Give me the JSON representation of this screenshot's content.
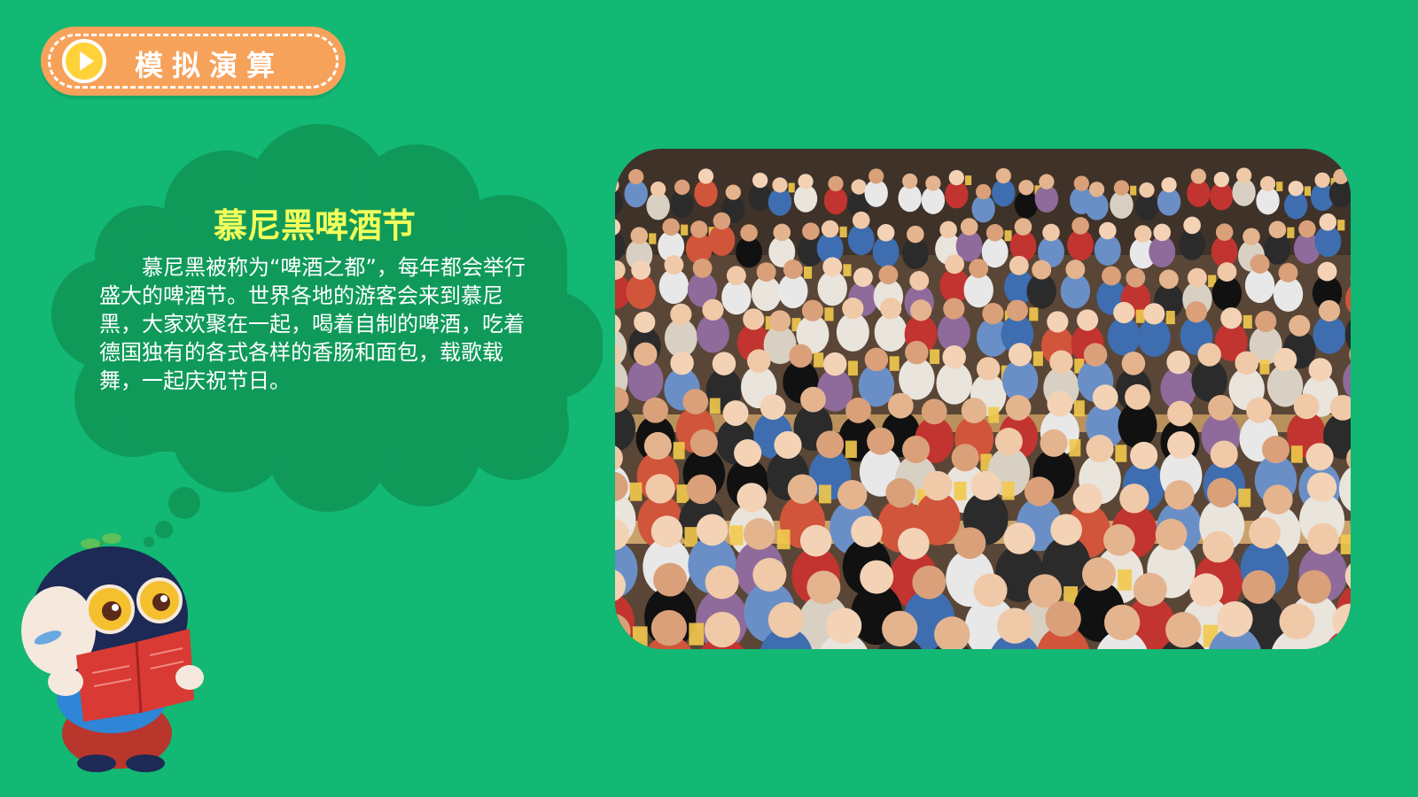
{
  "header": {
    "badge_label": "模拟演算",
    "badge_icon": "play-icon",
    "accent_color": "#f7a25a"
  },
  "cloud": {
    "title": "慕尼黑啤酒节",
    "body": "慕尼黑被称为“啤酒之都”，每年都会举行盛大的啤酒节。世界各地的游客会来到慕尼黑，大家欢聚在一起，喝着自制的啤酒，吃着德国独有的各式各样的香肠和面包，载歌载舞，一起庆祝节日。",
    "title_color": "#f3ff5a",
    "fill_color": "#0f9a5a"
  },
  "photo": {
    "subject": "oktoberfest-crowd-photo"
  },
  "mascot": {
    "icon": "reading-mascot-icon"
  },
  "background_color": "#12b873"
}
